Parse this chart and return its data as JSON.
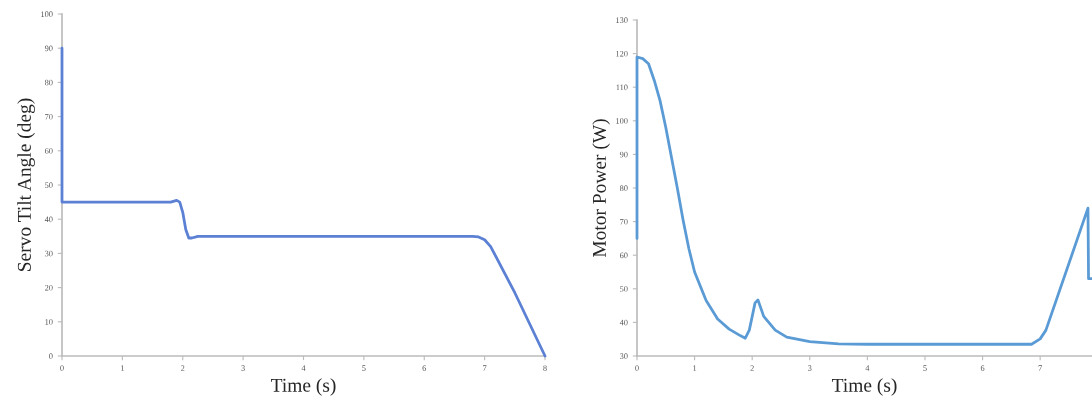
{
  "chart_data": [
    {
      "type": "line",
      "xlabel": "Time (s)",
      "ylabel": "Servo Tilt Angle (deg)",
      "xlim": [
        0,
        8
      ],
      "ylim": [
        0,
        100
      ],
      "xticks": [
        0,
        1,
        2,
        3,
        4,
        5,
        6,
        7,
        8
      ],
      "yticks": [
        0,
        10,
        20,
        30,
        40,
        50,
        60,
        70,
        80,
        90,
        100
      ],
      "grid": false,
      "legend": false,
      "series": [
        {
          "color": "#5b80d4",
          "x": [
            0,
            0,
            0.5,
            1.0,
            1.5,
            1.8,
            1.9,
            1.95,
            2.0,
            2.05,
            2.1,
            2.15,
            2.25,
            3,
            4,
            5,
            6,
            6.8,
            6.9,
            7.0,
            7.1,
            7.5,
            8.0
          ],
          "values": [
            90,
            45,
            45,
            45,
            45,
            45,
            45.5,
            45,
            42,
            37,
            34.5,
            34.5,
            35,
            35,
            35,
            35,
            35,
            35,
            34.8,
            34,
            32,
            18.5,
            0
          ]
        }
      ]
    },
    {
      "type": "line",
      "xlabel": "Time (s)",
      "ylabel": "Motor Power (W)",
      "xlim": [
        0,
        7.9
      ],
      "ylim": [
        30,
        130
      ],
      "xticks": [
        0,
        1,
        2,
        3,
        4,
        5,
        6,
        7
      ],
      "yticks": [
        30,
        40,
        50,
        60,
        70,
        80,
        90,
        100,
        110,
        120,
        130
      ],
      "grid": false,
      "legend": false,
      "series": [
        {
          "color": "#5b9bd5",
          "x": [
            0,
            0,
            0.1,
            0.2,
            0.3,
            0.4,
            0.5,
            0.6,
            0.7,
            0.8,
            0.9,
            1.0,
            1.2,
            1.4,
            1.6,
            1.8,
            1.88,
            1.95,
            2.05,
            2.1,
            2.2,
            2.4,
            2.6,
            3.0,
            3.5,
            4,
            5,
            6,
            6.85,
            7.0,
            7.1,
            7.83,
            7.84,
            7.9
          ],
          "values": [
            65,
            119,
            118.5,
            117,
            112,
            106,
            98,
            89,
            80,
            70.5,
            62,
            55,
            46.5,
            41,
            38,
            36,
            35.3,
            37.7,
            45.8,
            46.7,
            41.8,
            37.7,
            35.6,
            34.3,
            33.6,
            33.5,
            33.5,
            33.5,
            33.5,
            35.1,
            37.7,
            74,
            53,
            53
          ]
        }
      ]
    }
  ]
}
